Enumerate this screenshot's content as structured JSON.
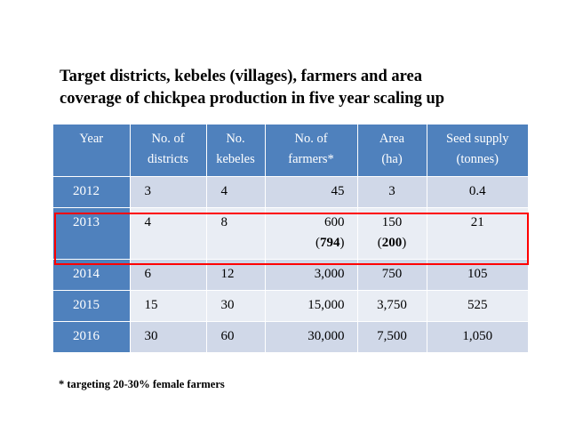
{
  "title": {
    "line1": "Target districts, kebeles (villages), farmers and area",
    "line2": "coverage of chickpea production in five year scaling up"
  },
  "table": {
    "headers": [
      {
        "line1": "Year",
        "line2": ""
      },
      {
        "line1": "No. of",
        "line2": "districts"
      },
      {
        "line1": "No.",
        "line2": "kebeles"
      },
      {
        "line1": "No. of",
        "line2": "farmers*"
      },
      {
        "line1": "Area",
        "line2": "(ha)"
      },
      {
        "line1": "Seed supply",
        "line2": "(tonnes)"
      }
    ],
    "rows": [
      {
        "year": "2012",
        "districts": "3",
        "kebeles": "4",
        "farmers": "45",
        "farmers_extra": "",
        "area": "3",
        "area_extra": "",
        "seed": "0.4"
      },
      {
        "year": "2013",
        "districts": "4",
        "kebeles": "8",
        "farmers": "600",
        "farmers_extra": "794",
        "area": "150",
        "area_extra": "200",
        "seed": "21"
      },
      {
        "year": "2014",
        "districts": "6",
        "kebeles": "12",
        "farmers": "3,000",
        "farmers_extra": "",
        "area": "750",
        "area_extra": "",
        "seed": "105"
      },
      {
        "year": "2015",
        "districts": "15",
        "kebeles": "30",
        "farmers": "15,000",
        "farmers_extra": "",
        "area": "3,750",
        "area_extra": "",
        "seed": "525"
      },
      {
        "year": "2016",
        "districts": "30",
        "kebeles": "60",
        "farmers": "30,000",
        "farmers_extra": "",
        "area": "7,500",
        "area_extra": "",
        "seed": "1,050"
      }
    ]
  },
  "footnote": "* targeting 20-30% female farmers",
  "colors": {
    "header": "#4f81bd",
    "row_light": "#d0d8e8",
    "row_lighter": "#e9edf4",
    "highlight": "#ff0000"
  }
}
